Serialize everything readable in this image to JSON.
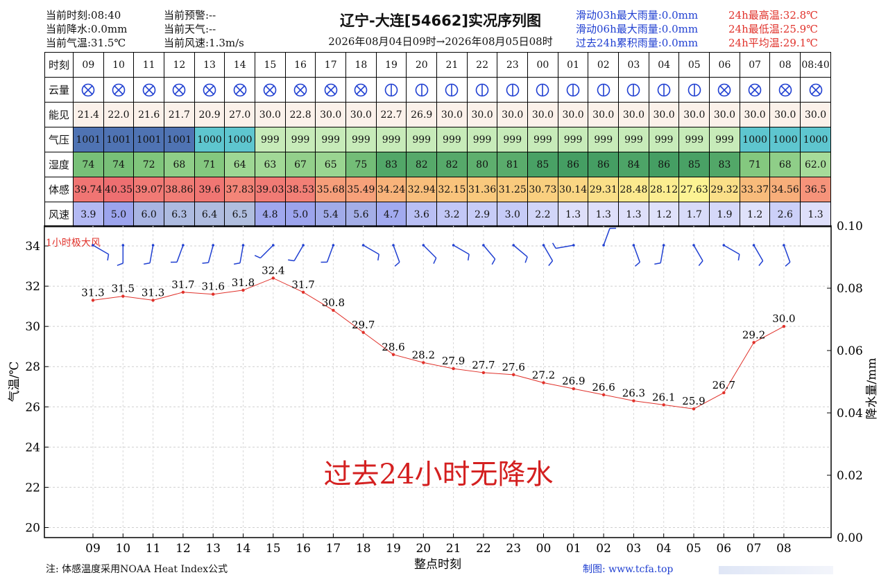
{
  "header": {
    "left": [
      "当前时刻:08:40",
      "当前降水:0.0mm",
      "当前气温:31.5℃"
    ],
    "middle": [
      "当前预警:--",
      "当前天气:--",
      "当前风速:1.3m/s"
    ],
    "title": "辽宁-大连[54662]实况序列图",
    "range": "2026年08月04日09时→2026年08月05日08时",
    "right_blue": [
      "滑动03h最大雨量:0.0mm",
      "滑动06h最大雨量:0.0mm",
      "过去24h累积雨量:0.0mm"
    ],
    "right_red": [
      "24h最高温:32.8℃",
      "24h最低温:25.9℃",
      "24h平均温:29.1℃"
    ]
  },
  "table": {
    "row_labels": [
      "时刻",
      "云量",
      "能见",
      "气压",
      "湿度",
      "体感",
      "风速"
    ],
    "hours": [
      "09",
      "10",
      "11",
      "12",
      "13",
      "14",
      "15",
      "16",
      "17",
      "18",
      "19",
      "20",
      "21",
      "22",
      "23",
      "00",
      "01",
      "02",
      "03",
      "04",
      "05",
      "06",
      "07",
      "08",
      "08:40"
    ],
    "cloud_icons": [
      "overcast-icon",
      "overcast-icon",
      "overcast-icon",
      "overcast-icon",
      "overcast-icon",
      "overcast-icon",
      "overcast-icon",
      "overcast-icon",
      "overcast-icon",
      "overcast-icon",
      "half-cloud-icon",
      "half-cloud-icon",
      "half-cloud-icon",
      "half-cloud-icon",
      "half-cloud-icon",
      "half-cloud-icon",
      "half-cloud-icon",
      "half-cloud-icon",
      "half-cloud-icon",
      "half-cloud-icon",
      "half-cloud-icon",
      "overcast-icon",
      "overcast-icon",
      "overcast-icon",
      "overcast-icon"
    ],
    "visibility": [
      "21.4",
      "22.0",
      "21.6",
      "21.7",
      "20.9",
      "27.0",
      "30.0",
      "22.8",
      "30.0",
      "30.0",
      "22.7",
      "26.9",
      "30.0",
      "30.0",
      "30.0",
      "30.0",
      "30.0",
      "30.0",
      "30.0",
      "30.0",
      "30.0",
      "30.0",
      "30.0",
      "30.0",
      "30.0"
    ],
    "pressure": [
      "1001",
      "1001",
      "1001",
      "1001",
      "1000",
      "1000",
      "999",
      "999",
      "999",
      "999",
      "999",
      "999",
      "999",
      "999",
      "999",
      "999",
      "999",
      "999",
      "999",
      "999",
      "999",
      "999",
      "1000",
      "1000",
      "1000"
    ],
    "humidity": [
      "74",
      "74",
      "72",
      "68",
      "71",
      "64",
      "63",
      "67",
      "65",
      "75",
      "83",
      "82",
      "82",
      "80",
      "81",
      "85",
      "86",
      "86",
      "84",
      "86",
      "85",
      "83",
      "71",
      "68",
      "62.0"
    ],
    "feels_like": [
      "39.74",
      "40.35",
      "39.07",
      "38.86",
      "39.6",
      "37.83",
      "39.03",
      "38.53",
      "35.68",
      "35.49",
      "34.24",
      "32.94",
      "32.15",
      "31.36",
      "31.25",
      "30.73",
      "30.14",
      "29.31",
      "28.48",
      "28.12",
      "27.63",
      "29.32",
      "33.37",
      "34.56",
      "36.5"
    ],
    "wind_speed": [
      "3.9",
      "5.0",
      "6.0",
      "6.3",
      "6.4",
      "6.5",
      "4.8",
      "5.0",
      "5.4",
      "5.6",
      "4.7",
      "3.6",
      "3.2",
      "2.9",
      "3.0",
      "2.2",
      "1.3",
      "1.3",
      "1.3",
      "1.2",
      "1.7",
      "1.9",
      "1.2",
      "2.6",
      "1.3"
    ]
  },
  "colors": {
    "temp_line": "#e0312a",
    "rain_text": "#d42020",
    "wind_barb": "#1f3fd1",
    "visibility_bg": "#fbf1ea"
  },
  "chart_data": {
    "type": "line",
    "categories": [
      "09",
      "10",
      "11",
      "12",
      "13",
      "14",
      "15",
      "16",
      "17",
      "18",
      "19",
      "20",
      "21",
      "22",
      "23",
      "00",
      "01",
      "02",
      "03",
      "04",
      "05",
      "06",
      "07",
      "08"
    ],
    "temperature": [
      31.3,
      31.5,
      31.3,
      31.7,
      31.6,
      31.8,
      32.4,
      31.7,
      30.8,
      29.7,
      28.6,
      28.2,
      27.9,
      27.7,
      27.6,
      27.2,
      26.9,
      26.6,
      26.3,
      26.1,
      25.9,
      26.7,
      29.2,
      30.0
    ],
    "wind_direction_deg": [
      300,
      0,
      10,
      20,
      15,
      10,
      45,
      30,
      20,
      300,
      340,
      315,
      300,
      320,
      310,
      330,
      80,
      200,
      340,
      10,
      330,
      300,
      330,
      340
    ],
    "ylabel": "气温/℃",
    "y2label": "降水量/mm",
    "xlabel": "整点时刻",
    "ylim": [
      19.5,
      35
    ],
    "y_ticks": [
      20,
      22,
      24,
      26,
      28,
      30,
      32,
      34
    ],
    "y2lim": [
      0.0,
      0.1
    ],
    "y2_ticks": [
      "0.00",
      "0.02",
      "0.04",
      "0.06",
      "0.08",
      "0.10"
    ],
    "grid": true,
    "wind_label": "1小时极大风",
    "precip_annotation": "过去24小时无降水"
  },
  "footer": {
    "note": "注: 体感温度采用NOAA Heat Index公式",
    "credit": "制图: www.tcfa.top"
  }
}
